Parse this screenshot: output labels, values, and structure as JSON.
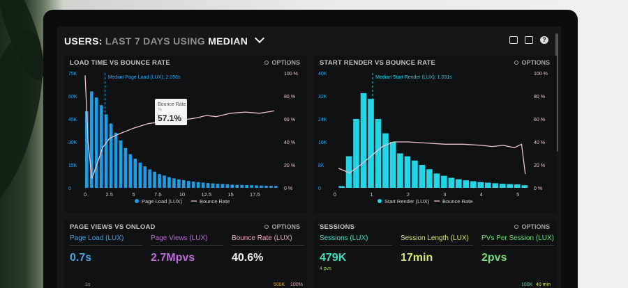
{
  "header": {
    "title_prefix": "USERS:",
    "title_range": "LAST 7 DAYS",
    "title_using": "USING",
    "title_stat": "MEDIAN"
  },
  "options_label": "OPTIONS",
  "panels": {
    "load_time": {
      "title": "LOAD TIME VS BOUNCE RATE"
    },
    "start_render": {
      "title": "START RENDER VS BOUNCE RATE"
    },
    "page_views": {
      "title": "PAGE VIEWS VS ONLOAD"
    },
    "sessions": {
      "title": "SESSIONS"
    }
  },
  "chart_data": [
    {
      "type": "bar",
      "title": "LOAD TIME VS BOUNCE RATE",
      "x_ticks": [
        "0",
        "2.5",
        "5",
        "7.5",
        "10",
        "12.5",
        "15",
        "17.5"
      ],
      "y_left_ticks": [
        "0",
        "15K",
        "30K",
        "45K",
        "60K",
        "75K"
      ],
      "y_right_ticks": [
        "0 %",
        "20 %",
        "40 %",
        "60 %",
        "80 %",
        "100 %"
      ],
      "xlim": [
        0,
        20
      ],
      "ylim_left": [
        0,
        75000
      ],
      "ylim_right": [
        0,
        100
      ],
      "bar_x": [
        0,
        0.5,
        1,
        1.5,
        2,
        2.5,
        3,
        3.5,
        4,
        4.5,
        5,
        5.5,
        6,
        6.5,
        7,
        7.5,
        8,
        8.5,
        9,
        9.5,
        10,
        10.5,
        11,
        11.5,
        12,
        12.5,
        13,
        13.5,
        14,
        14.5,
        15,
        15.5,
        16,
        16.5,
        17,
        17.5,
        18,
        18.5,
        19,
        19.5
      ],
      "series": [
        {
          "name": "Page Load (LUX)",
          "values": [
            50000,
            63000,
            59000,
            54000,
            48000,
            42000,
            36000,
            31000,
            26000,
            22000,
            19000,
            16500,
            14000,
            12000,
            10500,
            9000,
            8000,
            7000,
            6200,
            5500,
            5000,
            4500,
            4100,
            3700,
            3400,
            3100,
            2900,
            2700,
            2500,
            2300,
            2100,
            2000,
            1900,
            1800,
            1700,
            1600,
            1500,
            1400,
            1300,
            1200
          ]
        },
        {
          "name": "Bounce Rate",
          "x": [
            0,
            0.3,
            0.7,
            1.2,
            1.8,
            2.5,
            3.5,
            5,
            6.5,
            7.5,
            8.5,
            10,
            11.5,
            12.5,
            13.5,
            15,
            16.5,
            18,
            19.5
          ],
          "values": [
            98,
            40,
            8,
            20,
            35,
            43,
            47,
            52,
            56,
            57.1,
            57,
            59,
            61,
            63,
            62,
            65,
            66,
            65,
            67
          ]
        }
      ],
      "annotations": {
        "median_label": "Median Page Load (LUX): 2.056s",
        "median_x": 2.056
      },
      "tooltip": {
        "label": "Bounce Rate",
        "sub": "7s",
        "value": "57.1%"
      },
      "legend": [
        "Page Load (LUX)",
        "Bounce Rate"
      ]
    },
    {
      "type": "bar",
      "title": "START RENDER VS BOUNCE RATE",
      "x_ticks": [
        "0",
        "1",
        "2",
        "3",
        "4",
        "5"
      ],
      "y_left_ticks": [
        "0",
        "8K",
        "16K",
        "24K",
        "32K",
        "40K"
      ],
      "y_right_ticks": [
        "0 %",
        "20 %",
        "40 %",
        "60 %",
        "80 %",
        "100 %"
      ],
      "xlim": [
        0,
        5.3
      ],
      "ylim_left": [
        0,
        40000
      ],
      "ylim_right": [
        0,
        100
      ],
      "bar_x": [
        0.1,
        0.3,
        0.5,
        0.7,
        0.9,
        1.1,
        1.3,
        1.5,
        1.7,
        1.9,
        2.1,
        2.3,
        2.5,
        2.7,
        2.9,
        3.1,
        3.3,
        3.5,
        3.7,
        3.9,
        4.1,
        4.3,
        4.5,
        4.7,
        4.9,
        5.1
      ],
      "series": [
        {
          "name": "Start Render (LUX)",
          "values": [
            600,
            11000,
            24000,
            33000,
            31000,
            24000,
            19000,
            16000,
            12000,
            11000,
            9500,
            8000,
            6500,
            5000,
            4200,
            3500,
            3000,
            2600,
            2300,
            2000,
            1800,
            1600,
            1400,
            1300,
            1200,
            900
          ]
        },
        {
          "name": "Bounce Rate",
          "x": [
            0.1,
            0.4,
            0.7,
            1.0,
            1.3,
            1.6,
            2.0,
            2.5,
            3.0,
            3.5,
            4.0,
            4.3,
            4.6,
            4.9,
            5.1,
            5.2
          ],
          "values": [
            17,
            13,
            20,
            28,
            36,
            40,
            40,
            39,
            38,
            38,
            37,
            36,
            37,
            35,
            38,
            12
          ]
        }
      ],
      "annotations": {
        "median_label": "Median Start Render (LUX): 1.031s",
        "median_x": 1.031
      },
      "legend": [
        "Start Render (LUX)",
        "Bounce Rate"
      ]
    }
  ],
  "page_views_metrics": [
    {
      "label": "Page Load (LUX)",
      "value": "0.7s",
      "color": "#3fa3e3"
    },
    {
      "label": "Page Views (LUX)",
      "value": "2.7Mpvs",
      "color": "#c06ad8"
    },
    {
      "label": "Bounce Rate (LUX)",
      "value": "40.6%",
      "color": "#f3a8c2"
    }
  ],
  "page_views_axis": {
    "left": "1s",
    "mid": "500K",
    "right": "100%"
  },
  "sessions_metrics": [
    {
      "label": "Sessions (LUX)",
      "value": "479K",
      "sub": "4 pvs",
      "color": "#3fe0c8"
    },
    {
      "label": "Session Length (LUX)",
      "value": "17min",
      "sub": "",
      "color": "#d8e86a"
    },
    {
      "label": "PVs Per Session (LUX)",
      "value": "2pvs",
      "sub": "",
      "color": "#6de07a"
    }
  ],
  "sessions_axis": {
    "a": "100K",
    "b": "40 min"
  },
  "colors": {
    "bar_blue": "#1a9fe8",
    "bar_cyan": "#22d6e8",
    "bounce_line": "#f2c4d3",
    "accent_text": "#2fa8f2"
  }
}
